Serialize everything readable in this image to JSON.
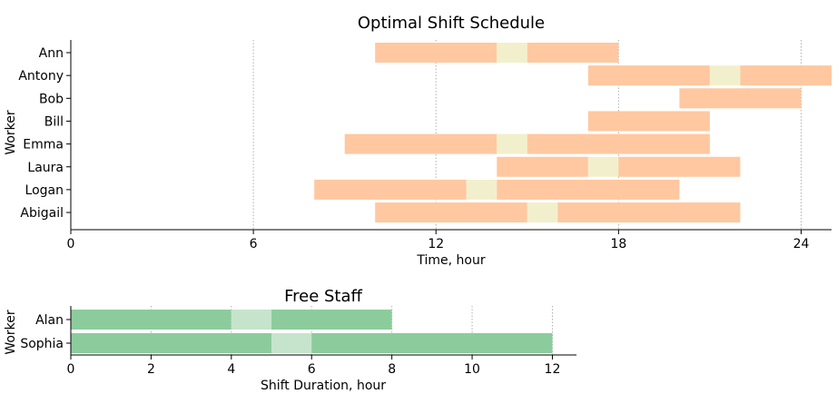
{
  "chart_data": [
    {
      "type": "bar",
      "orientation": "horizontal",
      "title": "Optimal Shift Schedule",
      "xlabel": "Time, hour",
      "ylabel": "Worker",
      "xlim": [
        0,
        25
      ],
      "xticks": [
        0,
        6,
        12,
        18,
        24
      ],
      "grid": "x-dotted",
      "colors": {
        "shift": "#ffc8a0",
        "break": "#f2f0cc",
        "grid": "#b0b0b0"
      },
      "workers": [
        {
          "name": "Ann",
          "shift": [
            10,
            18
          ],
          "break": [
            14,
            15
          ]
        },
        {
          "name": "Antony",
          "shift": [
            17,
            25
          ],
          "break": [
            21,
            22
          ]
        },
        {
          "name": "Bob",
          "shift": [
            20,
            24
          ],
          "break": null
        },
        {
          "name": "Bill",
          "shift": [
            17,
            21
          ],
          "break": null
        },
        {
          "name": "Emma",
          "shift": [
            9,
            21
          ],
          "break": [
            14,
            15
          ]
        },
        {
          "name": "Laura",
          "shift": [
            14,
            22
          ],
          "break": [
            17,
            18
          ]
        },
        {
          "name": "Logan",
          "shift": [
            8,
            20
          ],
          "break": [
            13,
            14
          ]
        },
        {
          "name": "Abigail",
          "shift": [
            10,
            22
          ],
          "break": [
            15,
            16
          ]
        }
      ]
    },
    {
      "type": "bar",
      "orientation": "horizontal",
      "title": "Free Staff",
      "xlabel": "Shift Duration, hour",
      "ylabel": "Worker",
      "xlim": [
        0,
        12.6
      ],
      "xticks": [
        0,
        2,
        4,
        6,
        8,
        10,
        12
      ],
      "grid": "x-dotted",
      "colors": {
        "shift": "#8ccc9c",
        "break": "#c6e4cc",
        "grid": "#b0b0b0"
      },
      "workers": [
        {
          "name": "Alan",
          "shift": [
            0,
            8
          ],
          "break": [
            4,
            5
          ]
        },
        {
          "name": "Sophia",
          "shift": [
            0,
            12
          ],
          "break": [
            5,
            6
          ]
        }
      ]
    }
  ]
}
